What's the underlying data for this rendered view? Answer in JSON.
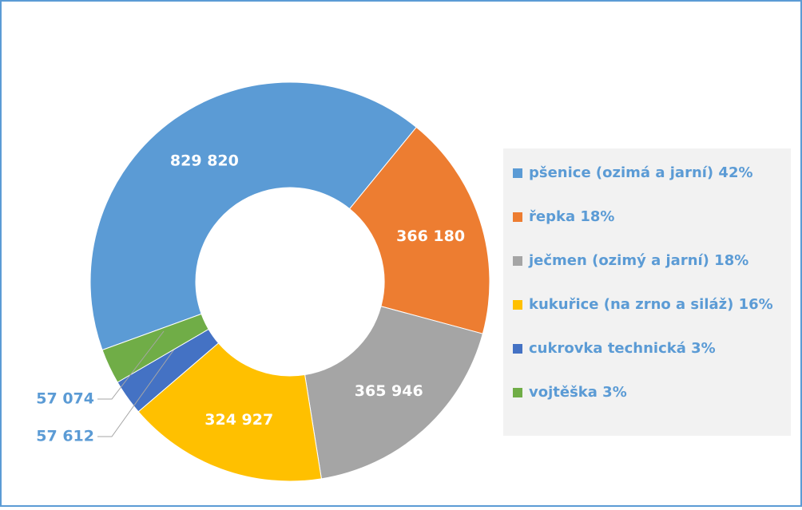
{
  "chart_data": {
    "type": "donut",
    "categories": [
      "pšenice (ozimá a jarní) 42%",
      "řepka 18%",
      "ječmen (ozimý a jarní) 18%",
      "kukuřice (na zrno a siláž) 16%",
      "cukrovka technická 3%",
      "vojtěška 3%"
    ],
    "values": [
      829820,
      366180,
      365946,
      324927,
      57612,
      57074
    ],
    "value_labels": [
      "829 820",
      "366 180",
      "365 946",
      "324 927",
      "57 612",
      "57 074"
    ],
    "colors": [
      "#5b9bd5",
      "#ed7d31",
      "#a5a5a5",
      "#ffc000",
      "#4472c4",
      "#70ad47"
    ],
    "legend": "right"
  }
}
